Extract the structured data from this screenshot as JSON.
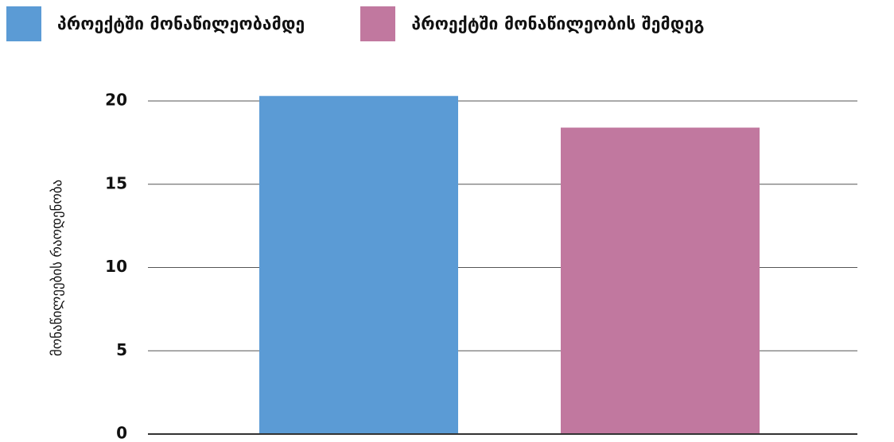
{
  "chart_data": {
    "type": "bar",
    "title": "",
    "xlabel": "",
    "ylabel": "მონაწილეების რაოდენობა",
    "ylim": [
      0,
      20
    ],
    "yticks": [
      0,
      5,
      10,
      15,
      20
    ],
    "grid": true,
    "legend_position": "top",
    "categories": [
      ""
    ],
    "series": [
      {
        "name": "პროექტში მონაწილეობამდე",
        "values": [
          20.3
        ],
        "color": "#5b9bd5"
      },
      {
        "name": "პროექტში მონაწილეობის შემდეგ",
        "values": [
          18.4
        ],
        "color": "#c1789f"
      }
    ]
  },
  "colors": {
    "gridline": "#555555",
    "axis": "#333333",
    "text": "#111111"
  }
}
